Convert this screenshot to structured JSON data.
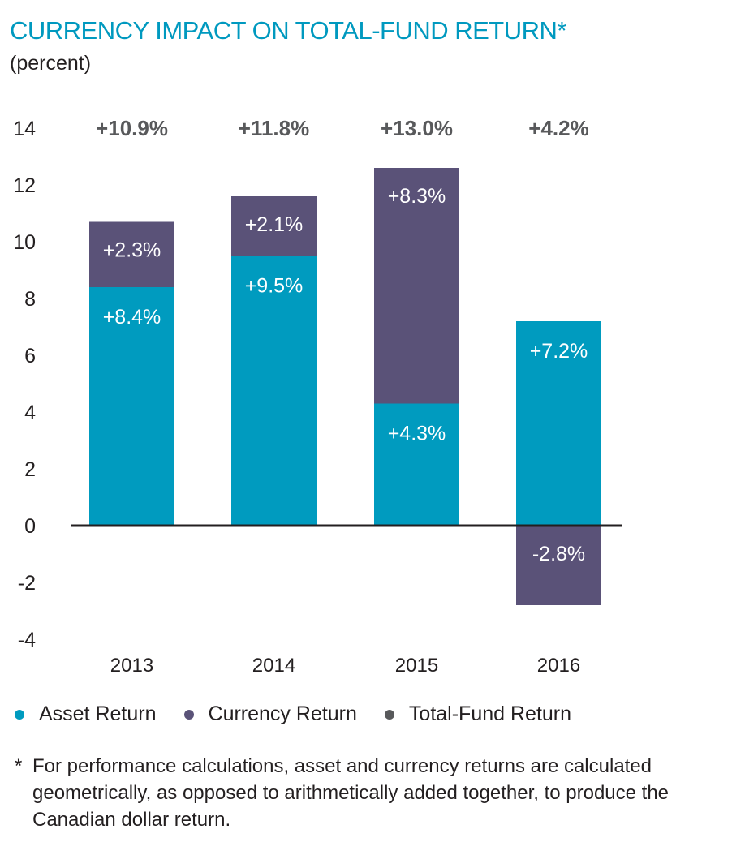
{
  "chart_data": {
    "type": "bar",
    "stacked": true,
    "title": "CURRENCY IMPACT ON TOTAL-FUND RETURN*",
    "subtitle": "(percent)",
    "xlabel": "",
    "ylabel": "percent",
    "ylim": [
      -4,
      14
    ],
    "yticks": [
      14,
      12,
      10,
      8,
      6,
      4,
      2,
      0,
      -2,
      -4
    ],
    "categories": [
      "2013",
      "2014",
      "2015",
      "2016"
    ],
    "series": [
      {
        "name": "Asset Return",
        "color": "#009bbf",
        "values": [
          8.4,
          9.5,
          4.3,
          7.2
        ],
        "labels": [
          "+8.4%",
          "+9.5%",
          "+4.3%",
          "+7.2%"
        ]
      },
      {
        "name": "Currency Return",
        "color": "#5a5278",
        "values": [
          2.3,
          2.1,
          8.3,
          -2.8
        ],
        "labels": [
          "+2.3%",
          "+2.1%",
          "+8.3%",
          "-2.8%"
        ]
      },
      {
        "name": "Total-Fund Return",
        "color": "#58595b",
        "values": [
          10.9,
          11.8,
          13.0,
          4.2
        ],
        "labels": [
          "+10.9%",
          "+11.8%",
          "+13.0%",
          "+4.2%"
        ]
      }
    ],
    "grid": false,
    "legend_position": "bottom",
    "footnote_marker": "*",
    "footnote": "For performance calculations, asset and currency returns are calculated geometrically, as opposed to arithmetically added together, to produce the Canadian dollar return."
  }
}
